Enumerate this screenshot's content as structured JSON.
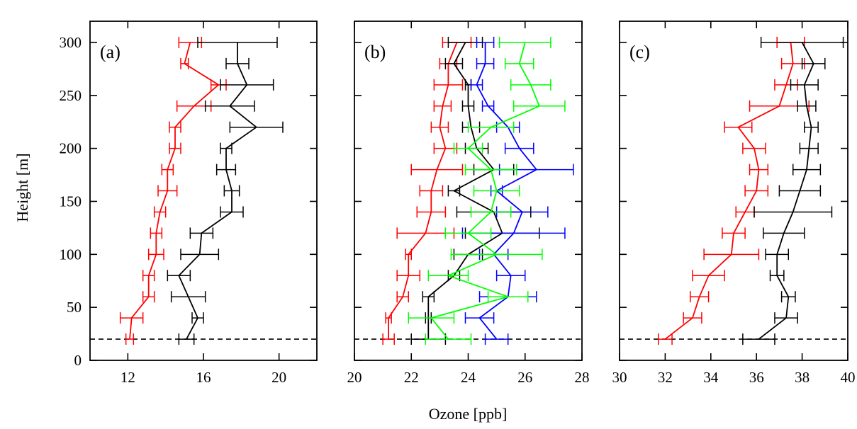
{
  "figure": {
    "ylabel": "Height [m]",
    "xlabel": "Ozone [ppb]"
  },
  "chart_data": [
    {
      "type": "line",
      "panel_label": "(a)",
      "xlim": [
        10,
        22
      ],
      "ylim": [
        0,
        320
      ],
      "xticks": [
        12,
        16,
        20
      ],
      "xtick_labels": [
        "12",
        "16",
        "20"
      ],
      "yticks": [
        0,
        50,
        100,
        150,
        200,
        250,
        300
      ],
      "ytick_labels": [
        "0",
        "50",
        "100",
        "150",
        "200",
        "250",
        "300"
      ],
      "reference_line_y": 20,
      "series": [
        {
          "color": "#ff0000",
          "points": [
            {
              "y": 20,
              "x": 12.1,
              "err": 0.2
            },
            {
              "y": 40,
              "x": 12.2,
              "err": 0.6
            },
            {
              "y": 60,
              "x": 13.1,
              "err": 0.3
            },
            {
              "y": 80,
              "x": 13.1,
              "err": 0.3
            },
            {
              "y": 100,
              "x": 13.5,
              "err": 0.4
            },
            {
              "y": 120,
              "x": 13.5,
              "err": 0.3
            },
            {
              "y": 140,
              "x": 13.7,
              "err": 0.3
            },
            {
              "y": 160,
              "x": 14.1,
              "err": 0.5
            },
            {
              "y": 180,
              "x": 14.1,
              "err": 0.3
            },
            {
              "y": 200,
              "x": 14.5,
              "err": 0.3
            },
            {
              "y": 220,
              "x": 14.5,
              "err": 0.3
            },
            {
              "y": 240,
              "x": 15.5,
              "err": 0.9
            },
            {
              "y": 260,
              "x": 16.8,
              "err": 0.4
            },
            {
              "y": 280,
              "x": 15.0,
              "err": 0.2
            },
            {
              "y": 300,
              "x": 15.3,
              "err": 0.6
            }
          ]
        },
        {
          "color": "#000000",
          "points": [
            {
              "y": 20,
              "x": 15.1,
              "err": 0.4
            },
            {
              "y": 40,
              "x": 15.7,
              "err": 0.3
            },
            {
              "y": 60,
              "x": 15.2,
              "err": 0.9
            },
            {
              "y": 80,
              "x": 14.7,
              "err": 0.6
            },
            {
              "y": 100,
              "x": 15.8,
              "err": 1.0
            },
            {
              "y": 120,
              "x": 15.9,
              "err": 0.6
            },
            {
              "y": 140,
              "x": 17.5,
              "err": 0.6
            },
            {
              "y": 160,
              "x": 17.5,
              "err": 0.4
            },
            {
              "y": 180,
              "x": 17.2,
              "err": 0.5
            },
            {
              "y": 200,
              "x": 17.2,
              "err": 0.3
            },
            {
              "y": 220,
              "x": 18.8,
              "err": 1.4
            },
            {
              "y": 240,
              "x": 17.4,
              "err": 1.3
            },
            {
              "y": 260,
              "x": 18.3,
              "err": 1.4
            },
            {
              "y": 280,
              "x": 17.8,
              "err": 0.6
            },
            {
              "y": 300,
              "x": 17.8,
              "err": 2.1
            }
          ]
        }
      ]
    },
    {
      "type": "line",
      "panel_label": "(b)",
      "xlim": [
        20,
        28
      ],
      "ylim": [
        0,
        320
      ],
      "xticks": [
        20,
        22,
        24,
        26,
        28
      ],
      "xtick_labels": [
        "20",
        "22",
        "24",
        "26",
        "28"
      ],
      "yticks": [
        0,
        50,
        100,
        150,
        200,
        250,
        300
      ],
      "ytick_labels": [
        "",
        "",
        "",
        "",
        "",
        "",
        ""
      ],
      "reference_line_y": 20,
      "series": [
        {
          "color": "#ff0000",
          "points": [
            {
              "y": 20,
              "x": 21.2,
              "err": 0.2
            },
            {
              "y": 40,
              "x": 21.2,
              "err": 0.1
            },
            {
              "y": 60,
              "x": 21.7,
              "err": 0.2
            },
            {
              "y": 80,
              "x": 21.9,
              "err": 0.4
            },
            {
              "y": 100,
              "x": 21.9,
              "err": 0.1
            },
            {
              "y": 120,
              "x": 22.5,
              "err": 1.0
            },
            {
              "y": 140,
              "x": 22.7,
              "err": 0.5
            },
            {
              "y": 160,
              "x": 22.7,
              "err": 0.4
            },
            {
              "y": 180,
              "x": 22.9,
              "err": 0.9
            },
            {
              "y": 200,
              "x": 23.2,
              "err": 0.4
            },
            {
              "y": 220,
              "x": 23.0,
              "err": 0.3
            },
            {
              "y": 240,
              "x": 23.1,
              "err": 0.3
            },
            {
              "y": 260,
              "x": 23.3,
              "err": 0.5
            },
            {
              "y": 280,
              "x": 23.3,
              "err": 0.3
            },
            {
              "y": 300,
              "x": 23.6,
              "err": 0.5
            }
          ]
        },
        {
          "color": "#000000",
          "points": [
            {
              "y": 20,
              "x": 22.6,
              "err": 0.6
            },
            {
              "y": 40,
              "x": 22.6,
              "err": 0.1
            },
            {
              "y": 60,
              "x": 22.6,
              "err": 0.2
            },
            {
              "y": 80,
              "x": 23.5,
              "err": 0.2
            },
            {
              "y": 100,
              "x": 24.0,
              "err": 0.5
            },
            {
              "y": 120,
              "x": 25.2,
              "err": 1.3
            },
            {
              "y": 140,
              "x": 24.9,
              "err": 1.3
            },
            {
              "y": 160,
              "x": 23.5,
              "err": 0.2
            },
            {
              "y": 180,
              "x": 24.9,
              "err": 0.7
            },
            {
              "y": 200,
              "x": 24.3,
              "err": 0.4
            },
            {
              "y": 220,
              "x": 24.1,
              "err": 0.3
            },
            {
              "y": 240,
              "x": 24.0,
              "err": 0.2
            },
            {
              "y": 260,
              "x": 24.0,
              "err": 0.1
            },
            {
              "y": 280,
              "x": 23.5,
              "err": 0.3
            },
            {
              "y": 300,
              "x": 23.9,
              "err": 0.6
            }
          ]
        },
        {
          "color": "#0000ff",
          "points": [
            {
              "y": 20,
              "x": 25.0,
              "err": 0.4
            },
            {
              "y": 40,
              "x": 24.4,
              "err": 0.5
            },
            {
              "y": 60,
              "x": 25.4,
              "err": 1.0
            },
            {
              "y": 80,
              "x": 25.5,
              "err": 0.5
            },
            {
              "y": 100,
              "x": 24.9,
              "err": 0.5
            },
            {
              "y": 120,
              "x": 25.6,
              "err": 1.8
            },
            {
              "y": 140,
              "x": 25.9,
              "err": 0.9
            },
            {
              "y": 160,
              "x": 25.0,
              "err": 0.2
            },
            {
              "y": 180,
              "x": 26.4,
              "err": 1.3
            },
            {
              "y": 200,
              "x": 25.8,
              "err": 0.5
            },
            {
              "y": 220,
              "x": 25.4,
              "err": 0.4
            },
            {
              "y": 240,
              "x": 24.7,
              "err": 0.2
            },
            {
              "y": 260,
              "x": 24.3,
              "err": 0.2
            },
            {
              "y": 280,
              "x": 24.6,
              "err": 0.3
            },
            {
              "y": 300,
              "x": 24.6,
              "err": 0.3
            }
          ]
        },
        {
          "color": "#00ff00",
          "points": [
            {
              "y": 20,
              "x": 23.3,
              "err": 0.8
            },
            {
              "y": 40,
              "x": 22.7,
              "err": 0.8
            },
            {
              "y": 60,
              "x": 25.4,
              "err": 0.7
            },
            {
              "y": 80,
              "x": 23.3,
              "err": 0.7
            },
            {
              "y": 100,
              "x": 25.0,
              "err": 1.6
            },
            {
              "y": 120,
              "x": 24.0,
              "err": 0.8
            },
            {
              "y": 140,
              "x": 24.8,
              "err": 0.7
            },
            {
              "y": 160,
              "x": 25.0,
              "err": 0.8
            },
            {
              "y": 180,
              "x": 24.8,
              "err": 0.9
            },
            {
              "y": 200,
              "x": 24.0,
              "err": 0.5
            },
            {
              "y": 220,
              "x": 24.8,
              "err": 0.8
            },
            {
              "y": 240,
              "x": 26.5,
              "err": 0.9
            },
            {
              "y": 260,
              "x": 26.2,
              "err": 0.7
            },
            {
              "y": 280,
              "x": 25.8,
              "err": 0.5
            },
            {
              "y": 300,
              "x": 26.0,
              "err": 0.9
            }
          ]
        }
      ]
    },
    {
      "type": "line",
      "panel_label": "(c)",
      "xlim": [
        30,
        40
      ],
      "ylim": [
        0,
        320
      ],
      "xticks": [
        30,
        32,
        34,
        36,
        38,
        40
      ],
      "xtick_labels": [
        "30",
        "32",
        "34",
        "36",
        "38",
        "40"
      ],
      "yticks": [
        0,
        50,
        100,
        150,
        200,
        250,
        300
      ],
      "ytick_labels": [
        "",
        "",
        "",
        "",
        "",
        "",
        ""
      ],
      "reference_line_y": 20,
      "series": [
        {
          "color": "#ff0000",
          "points": [
            {
              "y": 20,
              "x": 32.0,
              "err": 0.3
            },
            {
              "y": 40,
              "x": 33.2,
              "err": 0.4
            },
            {
              "y": 60,
              "x": 33.5,
              "err": 0.4
            },
            {
              "y": 80,
              "x": 33.9,
              "err": 0.7
            },
            {
              "y": 100,
              "x": 34.9,
              "err": 1.2
            },
            {
              "y": 120,
              "x": 35.0,
              "err": 0.5
            },
            {
              "y": 140,
              "x": 35.5,
              "err": 0.4
            },
            {
              "y": 160,
              "x": 36.0,
              "err": 0.5
            },
            {
              "y": 180,
              "x": 36.1,
              "err": 0.4
            },
            {
              "y": 200,
              "x": 35.9,
              "err": 0.5
            },
            {
              "y": 220,
              "x": 35.2,
              "err": 0.6
            },
            {
              "y": 240,
              "x": 37.0,
              "err": 1.3
            },
            {
              "y": 260,
              "x": 37.3,
              "err": 0.5
            },
            {
              "y": 280,
              "x": 37.6,
              "err": 0.5
            },
            {
              "y": 300,
              "x": 37.5,
              "err": 0.6
            }
          ]
        },
        {
          "color": "#000000",
          "points": [
            {
              "y": 20,
              "x": 36.1,
              "err": 0.7
            },
            {
              "y": 40,
              "x": 37.3,
              "err": 0.5
            },
            {
              "y": 60,
              "x": 37.4,
              "err": 0.3
            },
            {
              "y": 80,
              "x": 36.9,
              "err": 0.3
            },
            {
              "y": 100,
              "x": 36.9,
              "err": 0.5
            },
            {
              "y": 120,
              "x": 37.2,
              "err": 0.9
            },
            {
              "y": 140,
              "x": 37.6,
              "err": 1.7
            },
            {
              "y": 160,
              "x": 37.9,
              "err": 0.9
            },
            {
              "y": 180,
              "x": 38.2,
              "err": 0.6
            },
            {
              "y": 200,
              "x": 38.3,
              "err": 0.4
            },
            {
              "y": 220,
              "x": 38.4,
              "err": 0.3
            },
            {
              "y": 240,
              "x": 38.2,
              "err": 0.4
            },
            {
              "y": 260,
              "x": 38.1,
              "err": 0.6
            },
            {
              "y": 280,
              "x": 38.5,
              "err": 0.5
            },
            {
              "y": 300,
              "x": 38.0,
              "err": 1.8
            }
          ]
        }
      ]
    }
  ]
}
